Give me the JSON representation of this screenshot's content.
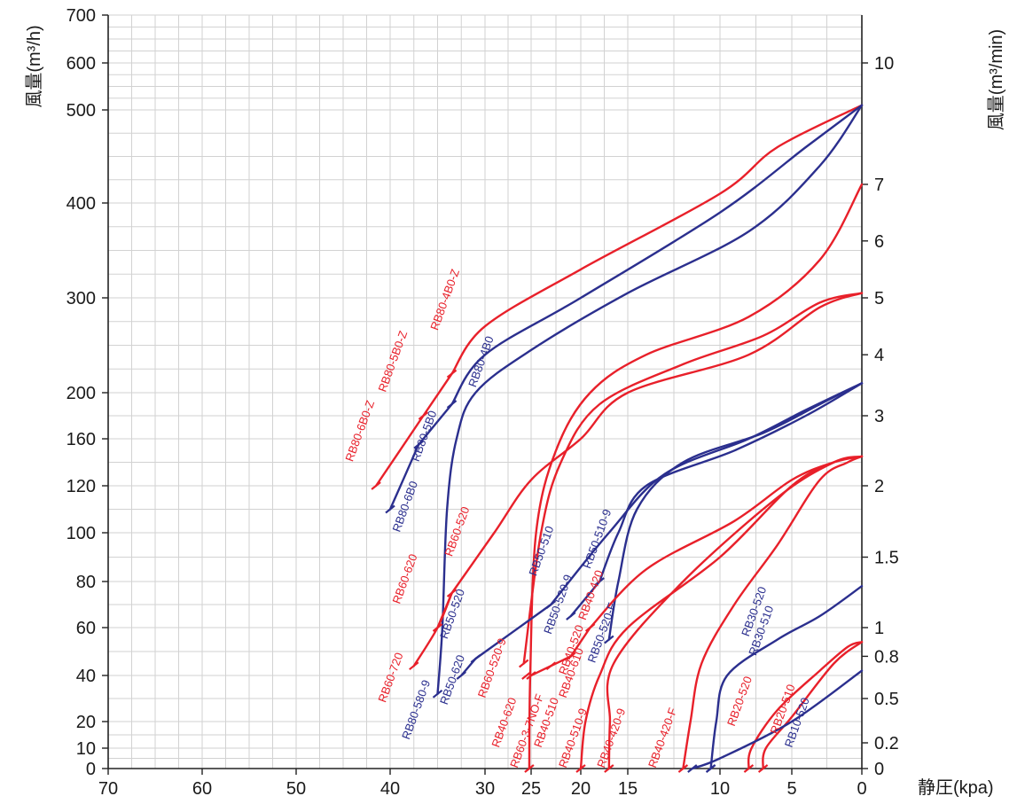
{
  "chart_data": {
    "type": "line",
    "x_axis": {
      "label": "静圧(kpa)",
      "range": [
        70,
        0
      ],
      "ticks": [
        70,
        60,
        50,
        40,
        30,
        25,
        20,
        15,
        10,
        5,
        0
      ]
    },
    "y_axis_left": {
      "label": "風量(m³/h)",
      "range": [
        0,
        700
      ],
      "ticks": [
        0,
        10,
        20,
        40,
        60,
        80,
        100,
        120,
        160,
        200,
        300,
        400,
        500,
        600,
        700
      ]
    },
    "y_axis_right": {
      "label": "風量(m³/min)",
      "ticks": [
        "0",
        "0.2",
        "0.5",
        "0.8",
        "1",
        "1.5",
        "2",
        "3",
        "4",
        "5",
        "6",
        "7",
        "10"
      ],
      "tick_values_m3h": [
        0,
        12,
        30,
        48,
        60,
        90,
        120,
        180,
        240,
        300,
        360,
        420,
        600
      ]
    },
    "grid": true,
    "colors": {
      "red": "#e8202a",
      "blue": "#2b2f8e",
      "grid": "#d2d2d2",
      "axis": "#222222"
    },
    "series": [
      {
        "name": "RB80-4B0-Z",
        "color": "red",
        "points": [
          [
            33.5,
            220
          ],
          [
            30,
            270
          ],
          [
            20,
            330
          ],
          [
            10,
            410
          ],
          [
            6,
            460
          ],
          [
            0,
            510
          ]
        ]
      },
      {
        "name": "RB80-5B0-Z",
        "color": "red",
        "points": [
          [
            36.5,
            180
          ],
          [
            33.5,
            220
          ]
        ]
      },
      {
        "name": "RB80-6B0-Z",
        "color": "red",
        "points": [
          [
            41.5,
            120
          ],
          [
            36.5,
            180
          ]
        ]
      },
      {
        "name": "RB80-4B0",
        "color": "blue",
        "points": [
          [
            33.5,
            190
          ],
          [
            30,
            240
          ],
          [
            20,
            300
          ],
          [
            10,
            390
          ],
          [
            4,
            460
          ],
          [
            0,
            510
          ]
        ]
      },
      {
        "name": "RB80-5B0",
        "color": "blue",
        "points": [
          [
            37,
            155
          ],
          [
            33.5,
            190
          ]
        ]
      },
      {
        "name": "RB80-6B0",
        "color": "blue",
        "points": [
          [
            40,
            110
          ],
          [
            37,
            155
          ]
        ]
      },
      {
        "name": "RB80-580-9",
        "color": "blue",
        "points": [
          [
            35,
            32
          ],
          [
            34.5,
            60
          ],
          [
            34,
            110
          ],
          [
            33,
            160
          ],
          [
            31,
            200
          ],
          [
            25,
            245
          ],
          [
            15,
            305
          ],
          [
            8,
            370
          ],
          [
            3,
            440
          ],
          [
            0,
            510
          ]
        ]
      },
      {
        "name": "RB60-720",
        "color": "red",
        "points": [
          [
            37.5,
            44
          ],
          [
            35,
            60
          ],
          [
            33.5,
            75
          ]
        ]
      },
      {
        "name": "RB60-620",
        "color": "red",
        "points": [
          [
            35,
            60
          ],
          [
            33.5,
            75
          ]
        ]
      },
      {
        "name": "RB60-520",
        "color": "red",
        "points": [
          [
            33.5,
            75
          ],
          [
            29,
            100
          ],
          [
            25,
            125
          ],
          [
            20,
            160
          ],
          [
            15,
            200
          ],
          [
            8,
            240
          ],
          [
            3,
            290
          ],
          [
            0,
            305
          ]
        ]
      },
      {
        "name": "RB60-520-9",
        "color": "red",
        "points": [
          [
            25.8,
            45
          ],
          [
            24,
            100
          ],
          [
            22,
            140
          ],
          [
            18,
            190
          ],
          [
            12,
            230
          ],
          [
            7,
            260
          ],
          [
            3,
            295
          ],
          [
            0,
            305
          ]
        ]
      },
      {
        "name": "RB60-3-7NO-F",
        "color": "red",
        "points": [
          [
            25.2,
            0
          ],
          [
            25.1,
            40
          ],
          [
            24.5,
            100
          ],
          [
            22.5,
            150
          ],
          [
            19,
            200
          ],
          [
            14,
            240
          ],
          [
            8,
            280
          ],
          [
            3,
            340
          ],
          [
            0,
            420
          ]
        ]
      },
      {
        "name": "RB50-510",
        "color": "blue",
        "points": [
          [
            23,
            70
          ],
          [
            17,
            100
          ],
          [
            13,
            130
          ],
          [
            8,
            160
          ],
          [
            4,
            185
          ],
          [
            0,
            210
          ]
        ]
      },
      {
        "name": "RB50-520",
        "color": "blue",
        "points": [
          [
            31,
            47
          ],
          [
            23,
            70
          ]
        ]
      },
      {
        "name": "RB50-620",
        "color": "blue",
        "points": [
          [
            32.5,
            40
          ],
          [
            31,
            47
          ]
        ]
      },
      {
        "name": "RB50-510-9",
        "color": "blue",
        "points": [
          [
            18,
            80
          ],
          [
            16,
            100
          ],
          [
            14,
            120
          ],
          [
            9,
            150
          ],
          [
            4,
            180
          ],
          [
            0,
            210
          ]
        ]
      },
      {
        "name": "RB50-520-9",
        "color": "blue",
        "points": [
          [
            21,
            65
          ],
          [
            18,
            80
          ]
        ]
      },
      {
        "name": "RB50-520-F",
        "color": "blue",
        "points": [
          [
            17,
            55
          ],
          [
            16,
            80
          ],
          [
            14.5,
            110
          ],
          [
            12,
            140
          ],
          [
            7,
            165
          ],
          [
            3,
            190
          ],
          [
            0,
            210
          ]
        ]
      },
      {
        "name": "RB40-420",
        "color": "red",
        "points": [
          [
            19,
            60
          ],
          [
            14,
            85
          ],
          [
            9,
            105
          ],
          [
            5,
            125
          ],
          [
            2,
            140
          ],
          [
            0,
            145
          ]
        ]
      },
      {
        "name": "RB40-520",
        "color": "red",
        "points": [
          [
            21,
            48
          ],
          [
            19,
            60
          ]
        ]
      },
      {
        "name": "RB40-610",
        "color": "red",
        "points": [
          [
            23,
            44
          ],
          [
            21,
            48
          ]
        ]
      },
      {
        "name": "RB40-620",
        "color": "red",
        "points": [
          [
            25,
            40
          ],
          [
            23,
            44
          ]
        ]
      },
      {
        "name": "RB40-510",
        "color": "red",
        "points": [
          [
            25.5,
            40
          ]
        ]
      },
      {
        "name": "RB40-510-9",
        "color": "red",
        "points": [
          [
            20,
            0
          ],
          [
            19.5,
            20
          ],
          [
            18,
            40
          ],
          [
            15,
            60
          ],
          [
            10,
            90
          ],
          [
            5,
            120
          ],
          [
            2,
            140
          ],
          [
            0,
            145
          ]
        ]
      },
      {
        "name": "RB40-420-9",
        "color": "red",
        "points": [
          [
            17,
            0
          ],
          [
            16.9,
            20
          ],
          [
            16.5,
            45
          ],
          [
            12,
            80
          ],
          [
            6,
            115
          ],
          [
            2,
            140
          ],
          [
            0,
            145
          ]
        ]
      },
      {
        "name": "RB40-420-F",
        "color": "red",
        "points": [
          [
            12,
            0
          ],
          [
            11.6,
            20
          ],
          [
            11,
            45
          ],
          [
            9,
            70
          ],
          [
            6,
            95
          ],
          [
            3,
            125
          ],
          [
            1,
            140
          ],
          [
            0,
            145
          ]
        ]
      },
      {
        "name": "RB30-520",
        "color": "blue",
        "points": [
          [
            10.5,
            0
          ],
          [
            10.2,
            20
          ],
          [
            9.5,
            40
          ],
          [
            6,
            55
          ],
          [
            3,
            65
          ],
          [
            0,
            78
          ]
        ]
      },
      {
        "name": "RB30-510",
        "color": "blue",
        "points": [
          [
            10.5,
            0
          ]
        ]
      },
      {
        "name": "RB20-520",
        "color": "red",
        "points": [
          [
            8,
            0
          ],
          [
            7.8,
            10
          ],
          [
            6,
            25
          ],
          [
            3,
            42
          ],
          [
            1,
            52
          ],
          [
            0,
            54
          ]
        ]
      },
      {
        "name": "RB20-510",
        "color": "red",
        "points": [
          [
            7,
            0
          ],
          [
            6.8,
            10
          ],
          [
            5,
            22
          ],
          [
            2,
            45
          ],
          [
            0,
            54
          ]
        ]
      },
      {
        "name": "RB10-520",
        "color": "blue",
        "points": [
          [
            11.5,
            0
          ],
          [
            10,
            5
          ],
          [
            5,
            20
          ],
          [
            0,
            42
          ]
        ]
      }
    ]
  },
  "labels": [
    {
      "text": "RB80-6B0-Z",
      "color": "red",
      "x": 44,
      "y": 140
    },
    {
      "text": "RB80-5B0-Z",
      "color": "red",
      "x": 40.5,
      "y": 200
    },
    {
      "text": "RB80-4B0-Z",
      "color": "red",
      "x": 35,
      "y": 265
    },
    {
      "text": "RB80-6B0",
      "color": "blue",
      "x": 39,
      "y": 100
    },
    {
      "text": "RB80-5B0",
      "color": "blue",
      "x": 37,
      "y": 140
    },
    {
      "text": "RB80-4B0",
      "color": "blue",
      "x": 31,
      "y": 205
    },
    {
      "text": "RB80-580-9",
      "color": "blue",
      "x": 38,
      "y": 13
    },
    {
      "text": "RB60-720",
      "color": "red",
      "x": 40.5,
      "y": 28
    },
    {
      "text": "RB60-620",
      "color": "red",
      "x": 39,
      "y": 70
    },
    {
      "text": "RB60-520",
      "color": "red",
      "x": 33.5,
      "y": 90
    },
    {
      "text": "RB50-620",
      "color": "blue",
      "x": 34,
      "y": 27
    },
    {
      "text": "RB50-520",
      "color": "blue",
      "x": 34,
      "y": 55
    },
    {
      "text": "RB60-520-9",
      "color": "red",
      "x": 30,
      "y": 30
    },
    {
      "text": "RB40-620",
      "color": "red",
      "x": 28.5,
      "y": 10
    },
    {
      "text": "RB60-3-7NO-F",
      "color": "red",
      "x": 26.5,
      "y": 0
    },
    {
      "text": "RB40-510",
      "color": "red",
      "x": 24,
      "y": 10
    },
    {
      "text": "RB50-510",
      "color": "blue",
      "x": 24.5,
      "y": 82
    },
    {
      "text": "RB50-520-9",
      "color": "blue",
      "x": 23,
      "y": 57
    },
    {
      "text": "RB50-510-9",
      "color": "blue",
      "x": 19,
      "y": 85
    },
    {
      "text": "RB40-420",
      "color": "red",
      "x": 19.5,
      "y": 63
    },
    {
      "text": "RB40-520",
      "color": "red",
      "x": 21.5,
      "y": 40
    },
    {
      "text": "RB40-610",
      "color": "red",
      "x": 21.5,
      "y": 30
    },
    {
      "text": "RB50-520-F",
      "color": "blue",
      "x": 18.5,
      "y": 45
    },
    {
      "text": "RB40-510-9",
      "color": "red",
      "x": 21.5,
      "y": 0
    },
    {
      "text": "RB40-420-9",
      "color": "red",
      "x": 17.5,
      "y": 0
    },
    {
      "text": "RB40-420-F",
      "color": "red",
      "x": 13.5,
      "y": 0
    },
    {
      "text": "RB30-520",
      "color": "blue",
      "x": 8,
      "y": 56
    },
    {
      "text": "RB30-510",
      "color": "blue",
      "x": 7.5,
      "y": 48
    },
    {
      "text": "RB20-520",
      "color": "red",
      "x": 9,
      "y": 18
    },
    {
      "text": "RB20-510",
      "color": "red",
      "x": 6,
      "y": 15
    },
    {
      "text": "RB10-520",
      "color": "blue",
      "x": 5,
      "y": 10
    }
  ]
}
